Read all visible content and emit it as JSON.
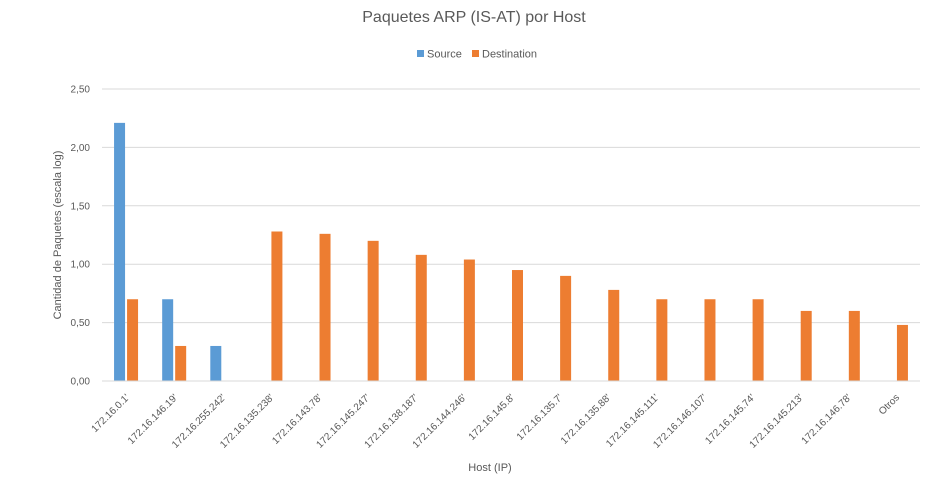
{
  "chart_data": {
    "type": "bar",
    "title": "Paquetes ARP (IS-AT) por Host",
    "xlabel": "Host (IP)",
    "ylabel": "Cantidad de Paquetes (escala log)",
    "ylim": [
      0,
      2.5
    ],
    "yticks": [
      "0,00",
      "0,50",
      "1,00",
      "1,50",
      "2,00",
      "2,50"
    ],
    "ytick_values": [
      0,
      0.5,
      1.0,
      1.5,
      2.0,
      2.5
    ],
    "grid": true,
    "legend_position": "top",
    "categories": [
      "172.16.0.1'",
      "172.16.146.19'",
      "172.16.255.242'",
      "172.16.135.238'",
      "172.16.143.78'",
      "172.16.145.247'",
      "172.16.138.187'",
      "172.16.144.246'",
      "172.16.145.8'",
      "172.16.135.7'",
      "172.16.135.88'",
      "172.16.145.111'",
      "172.16.146.107'",
      "172.16.145.74'",
      "172.16.145.213'",
      "172.16.146.78'",
      "Otros"
    ],
    "series": [
      {
        "name": "Source",
        "color": "#5b9bd5",
        "values": [
          2.21,
          0.7,
          0.3,
          0,
          0,
          0,
          0,
          0,
          0,
          0,
          0,
          0,
          0,
          0,
          0,
          0,
          0
        ]
      },
      {
        "name": "Destination",
        "color": "#ed7d31",
        "values": [
          0.7,
          0.3,
          0,
          1.28,
          1.26,
          1.2,
          1.08,
          1.04,
          0.95,
          0.9,
          0.78,
          0.7,
          0.7,
          0.7,
          0.6,
          0.6,
          0.48
        ]
      }
    ]
  }
}
